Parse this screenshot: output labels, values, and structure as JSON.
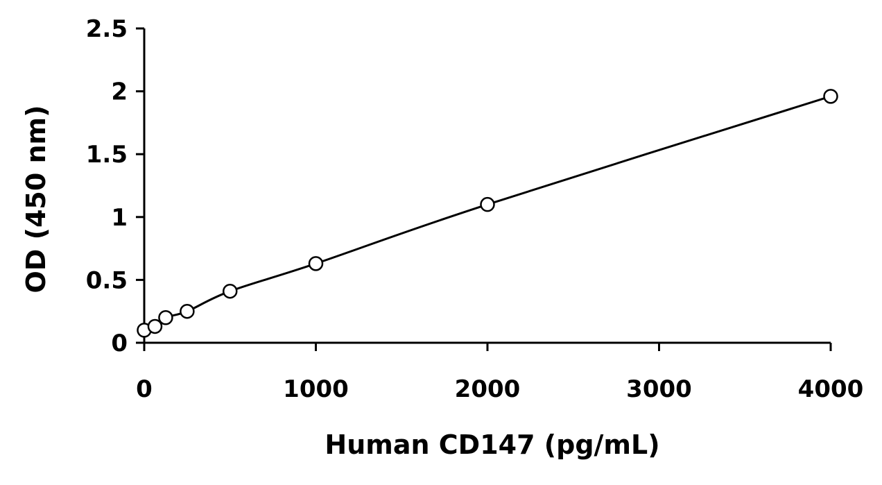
{
  "chart_data": {
    "type": "scatter",
    "title": "",
    "xlabel": "Human CD147 (pg/mL)",
    "ylabel": "OD (450 nm)",
    "xlim": [
      0,
      4000
    ],
    "ylim": [
      0,
      2.5
    ],
    "x_ticks": [
      0,
      1000,
      2000,
      3000,
      4000
    ],
    "x_tick_labels": [
      "0",
      "1000",
      "2000",
      "3000",
      "4000"
    ],
    "y_ticks": [
      0,
      0.5,
      1,
      1.5,
      2,
      2.5
    ],
    "y_tick_labels": [
      "0",
      "0.5",
      "1",
      "1.5",
      "2",
      "2.5"
    ],
    "grid": false,
    "legend": "none",
    "series": [
      {
        "x": [
          0,
          62.5,
          125,
          250,
          500,
          1000,
          2000,
          4000
        ],
        "y": [
          0.1,
          0.13,
          0.2,
          0.25,
          0.41,
          0.63,
          1.1,
          1.96
        ],
        "marker": "open-circle",
        "fit": "smooth-curve",
        "color": "#000000"
      }
    ]
  }
}
